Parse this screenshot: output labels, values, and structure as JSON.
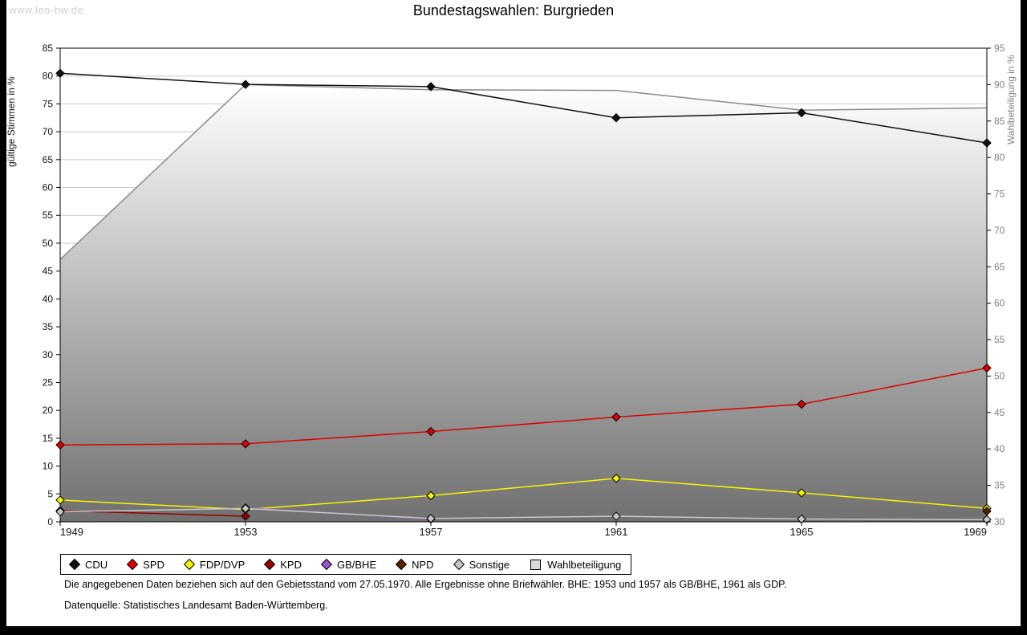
{
  "watermark": "www.leo-bw.de",
  "title": "Bundestagswahlen: Burgrieden",
  "footnotes": {
    "line1": "Die angegebenen Daten beziehen sich auf den Gebietsstand vom 27.05.1970. Alle Ergebnisse ohne Briefwähler. BHE: 1953 und 1957 als GB/BHE, 1961 als GDP.",
    "line2": "Datenquelle: Statistisches Landesamt Baden-Württemberg."
  },
  "chart_data": {
    "type": "line",
    "title": "Bundestagswahlen: Burgrieden",
    "x": [
      1949,
      1953,
      1957,
      1961,
      1965,
      1969
    ],
    "left_axis": {
      "label": "gültige Stimmen in %",
      "min": 0,
      "max": 85,
      "step": 5
    },
    "right_axis": {
      "label": "Wahlbeteiligung in %",
      "min": 30,
      "max": 95,
      "step": 5
    },
    "grid_color": "#c9c9c9",
    "area_gradient": [
      "#ffffff",
      "#707070"
    ],
    "series": [
      {
        "name": "CDU",
        "color": "#111111",
        "axis": "left",
        "marker": "diamond",
        "values": [
          80.5,
          78.5,
          78.1,
          72.5,
          73.4,
          68.0
        ]
      },
      {
        "name": "SPD",
        "color": "#dd0000",
        "axis": "left",
        "marker": "diamond",
        "values": [
          13.8,
          14.0,
          16.2,
          18.8,
          21.1,
          27.6
        ]
      },
      {
        "name": "FDP/DVP",
        "color": "#f5f500",
        "axis": "left",
        "marker": "diamond",
        "values": [
          3.9,
          2.2,
          4.7,
          7.8,
          5.2,
          2.4
        ]
      },
      {
        "name": "KPD",
        "color": "#990000",
        "axis": "left",
        "marker": "diamond",
        "values": [
          2.0,
          1.0,
          null,
          null,
          null,
          null
        ]
      },
      {
        "name": "GB/BHE",
        "color": "#9955cc",
        "axis": "left",
        "marker": "diamond",
        "values": [
          null,
          2.5,
          0.5,
          null,
          null,
          null
        ]
      },
      {
        "name": "NPD",
        "color": "#552200",
        "axis": "left",
        "marker": "diamond",
        "values": [
          null,
          null,
          null,
          null,
          null,
          1.9
        ]
      },
      {
        "name": "Sonstige",
        "color": "#c8c8c8",
        "axis": "left",
        "marker": "diamond",
        "values": [
          1.8,
          2.4,
          0.6,
          1.0,
          0.5,
          0.4
        ]
      },
      {
        "name": "Wahlbeteiligung",
        "color": "#8a8a8a",
        "axis": "right",
        "marker": "none",
        "area": true,
        "legend_fill": "#d9d9d9",
        "values": [
          66.0,
          90.0,
          89.3,
          89.2,
          86.5,
          86.8
        ]
      }
    ],
    "legend_position": "bottom"
  }
}
